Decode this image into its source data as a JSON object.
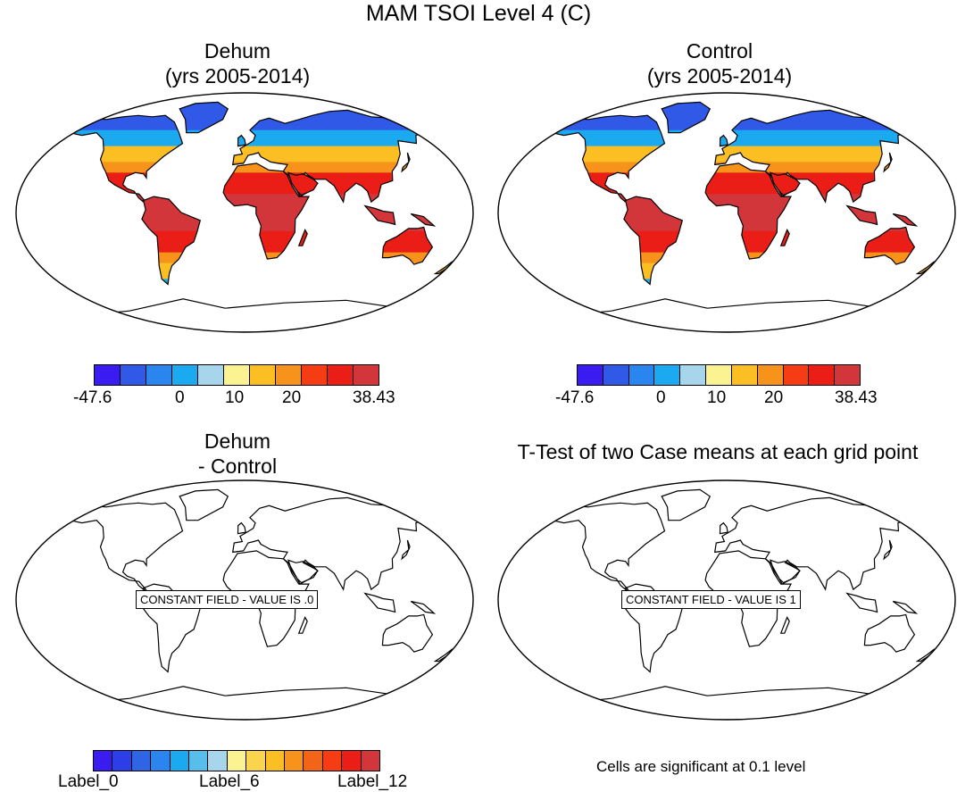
{
  "figure_title": "MAM TSOI Level 4 (C)",
  "panels": {
    "top_left": {
      "title_line1": "Dehum",
      "title_line2": "(yrs 2005-2014)"
    },
    "top_right": {
      "title_line1": "Control",
      "title_line2": "(yrs 2005-2014)"
    },
    "bottom_left": {
      "title_line1": "Dehum",
      "title_line2": "- Control",
      "message": "CONSTANT FIELD - VALUE IS .0"
    },
    "bottom_right": {
      "title": "T-Test of two Case means at each grid point",
      "message": "CONSTANT FIELD - VALUE IS 1",
      "note": "Cells are significant at 0.1 level"
    }
  },
  "colorbar_top": {
    "colors": [
      "#3a1cf0",
      "#2f59e6",
      "#2b85ee",
      "#1ba9ef",
      "#a7d5ec",
      "#fbf391",
      "#fbbf23",
      "#f7921b",
      "#f63c14",
      "#ea1d17",
      "#d2363a"
    ],
    "labels": [
      "-47.6",
      "0",
      "10",
      "20",
      "38.43"
    ]
  },
  "colorbar_bottom": {
    "colors": [
      "#3a1cf0",
      "#2c3ee8",
      "#2f64e5",
      "#2b85ee",
      "#1ba9ef",
      "#58bdea",
      "#a7d5ec",
      "#fbf391",
      "#fbd44e",
      "#fbbf23",
      "#f7921b",
      "#f36516",
      "#f63c14",
      "#ea1d17",
      "#d2363a"
    ],
    "labels": [
      "Label_0",
      "Label_6",
      "Label_12"
    ]
  },
  "map_colors": {
    "ocean": "#ffffff",
    "arctic": "#2f59e6",
    "boreal": "#1ba9ef",
    "temperate": "#fbbf23",
    "subtropical": "#f7921b",
    "tropical": "#ea1d17",
    "hot": "#d2363a"
  }
}
